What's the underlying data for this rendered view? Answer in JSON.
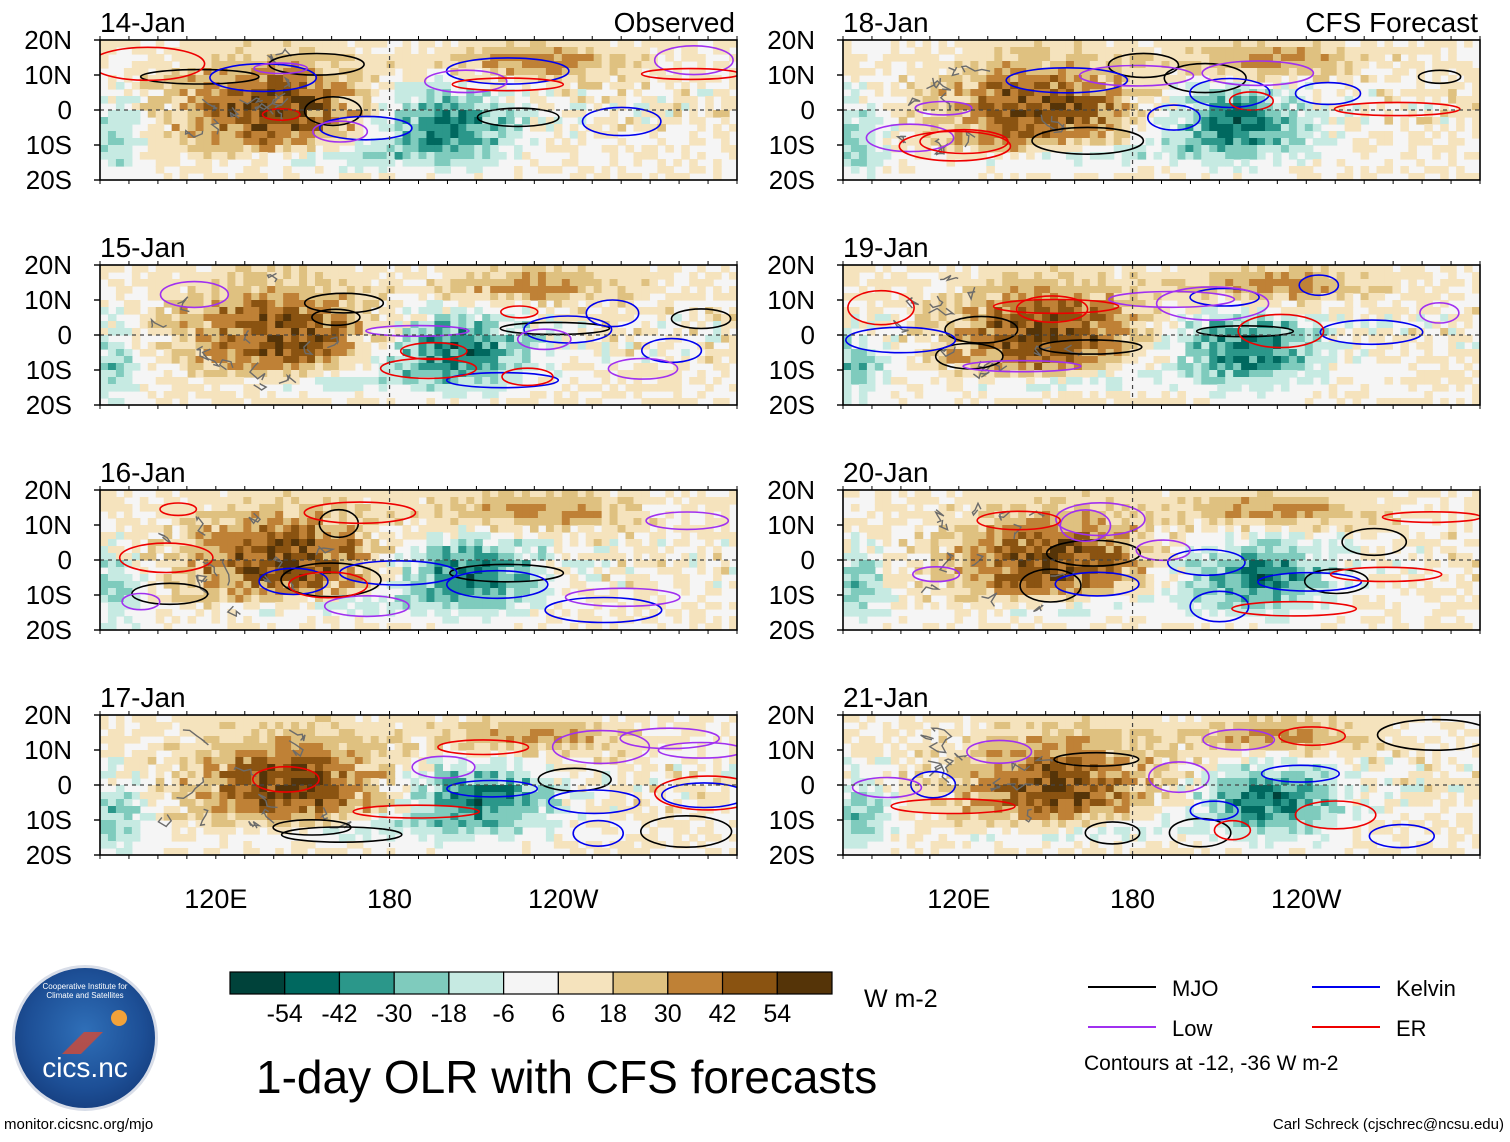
{
  "chart_data": {
    "type": "heatmap",
    "title": "1-day OLR with CFS forecasts",
    "variable": "OLR anomaly",
    "units": "W m-2",
    "x_axis": {
      "label": "",
      "ticks": [
        "120E",
        "180",
        "120W"
      ],
      "range_degE": [
        80,
        300
      ]
    },
    "y_axis": {
      "label": "",
      "ticks": [
        "20N",
        "10N",
        "0",
        "10S",
        "20S"
      ],
      "range_deg": [
        -20,
        20
      ]
    },
    "column_labels": [
      "Observed",
      "CFS Forecast"
    ],
    "panels": [
      {
        "date": "14-Jan",
        "column": "Observed"
      },
      {
        "date": "15-Jan",
        "column": "Observed"
      },
      {
        "date": "16-Jan",
        "column": "Observed"
      },
      {
        "date": "17-Jan",
        "column": "Observed"
      },
      {
        "date": "18-Jan",
        "column": "CFS Forecast"
      },
      {
        "date": "19-Jan",
        "column": "CFS Forecast"
      },
      {
        "date": "20-Jan",
        "column": "CFS Forecast"
      },
      {
        "date": "21-Jan",
        "column": "CFS Forecast"
      }
    ],
    "colorbar": {
      "labels": [
        "-54",
        "-42",
        "-30",
        "-18",
        "-6",
        "6",
        "18",
        "30",
        "42",
        "54"
      ],
      "colors": [
        "#00423a",
        "#00685f",
        "#2b978a",
        "#7fcbbd",
        "#c6eae2",
        "#f5f5f5",
        "#f5e3bd",
        "#dfc180",
        "#bf8136",
        "#8a5311",
        "#553408"
      ]
    },
    "legend": [
      {
        "label": "MJO",
        "color": "#000000"
      },
      {
        "label": "Kelvin",
        "color": "#0000ee"
      },
      {
        "label": "Low",
        "color": "#a030f0"
      },
      {
        "label": "ER",
        "color": "#ee0000"
      }
    ],
    "contours_note": "Contours at -12, -36 W m-2"
  },
  "footer": {
    "url": "monitor.cicsnc.org/mjo",
    "credit": "Carl Schreck (cjschrec@ncsu.edu)",
    "logo_name": "cics.nc",
    "logo_arc": "Cooperative Institute for Climate and Satellites"
  }
}
